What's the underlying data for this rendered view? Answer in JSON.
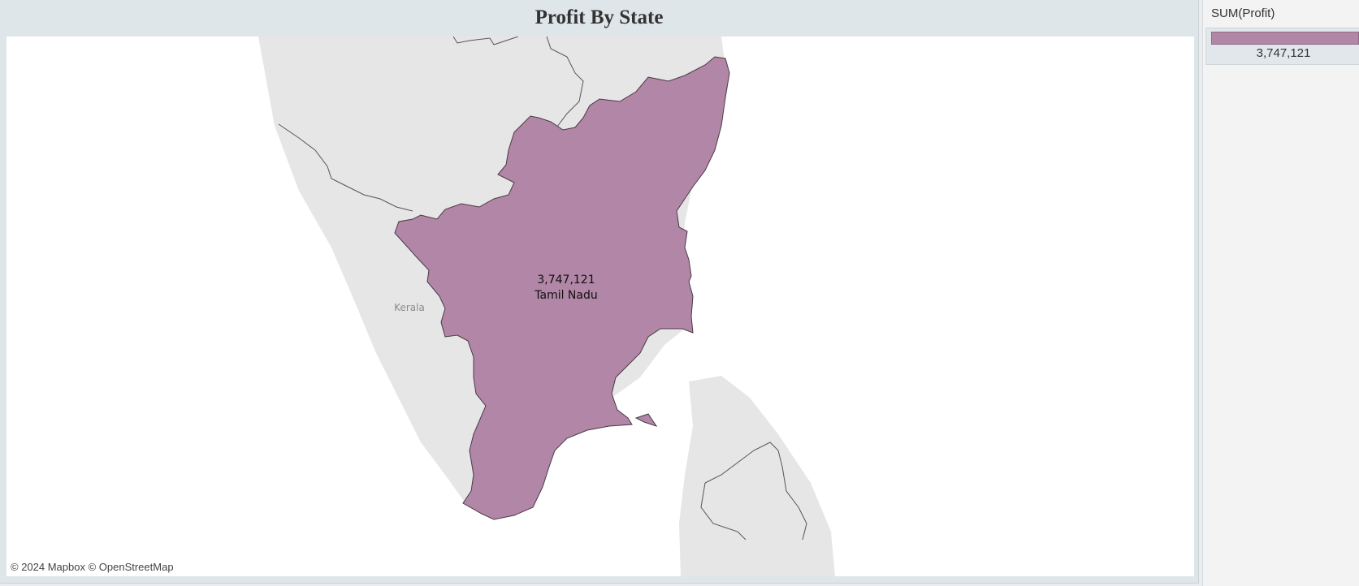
{
  "dashboard": {
    "title": "Profit By State"
  },
  "map": {
    "attribution": "© 2024 Mapbox © OpenStreetMap",
    "basemap_labels": [
      "Kerala"
    ],
    "regions": [
      {
        "name": "Tamil Nadu",
        "value": 3747121,
        "value_label": "3,747,121",
        "fill_color": "#b286a6"
      }
    ]
  },
  "legend": {
    "title": "SUM(Profit)",
    "value_label": "3,747,121",
    "color": "#b286a6"
  }
}
